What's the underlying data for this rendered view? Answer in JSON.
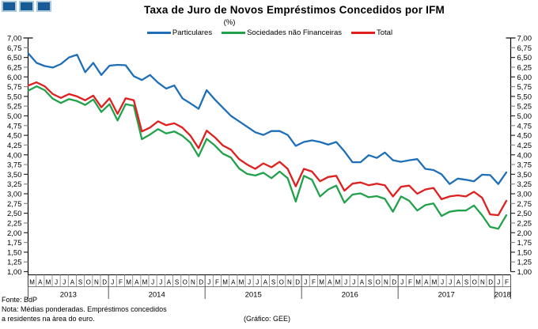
{
  "header": {
    "title": "Taxa de Juro de Novos Empréstimos Concedidos por IFM",
    "subtitle": "(%)"
  },
  "footer": {
    "fonte": "Fonte: BdP",
    "nota_line1": "Nota: Médias ponderadas. Empréstimos concedidos",
    "nota_line2": "a residentes na àrea do euro.",
    "grafico": "(Gráfico: GEE)"
  },
  "logo": {
    "square_color": "#185a94",
    "square_border": "#a9c9dd",
    "count": 3
  },
  "chart_data": {
    "type": "line",
    "title": "Taxa de Juro de Novos Empréstimos Concedidos por IFM",
    "subtitle": "(%)",
    "ylim": [
      1.0,
      7.0
    ],
    "y_step": 0.25,
    "grid": false,
    "legend_position": "top",
    "y_tick_labels": [
      "7,00",
      "6,75",
      "6,50",
      "6,25",
      "6,00",
      "5,75",
      "5,50",
      "5,25",
      "5,00",
      "4,75",
      "4,50",
      "4,25",
      "4,00",
      "3,75",
      "3,50",
      "3,25",
      "3,00",
      "2,75",
      "2,50",
      "2,25",
      "2,00",
      "1,75",
      "1,50",
      "1,25",
      "1,00"
    ],
    "x_axis_years": [
      {
        "label": "2013",
        "months": [
          "M",
          "A",
          "M",
          "J",
          "J",
          "A",
          "S",
          "O",
          "N",
          "D"
        ]
      },
      {
        "label": "2014",
        "months": [
          "J",
          "F",
          "M",
          "A",
          "M",
          "J",
          "J",
          "A",
          "S",
          "O",
          "N",
          "D"
        ]
      },
      {
        "label": "2015",
        "months": [
          "J",
          "F",
          "M",
          "A",
          "M",
          "J",
          "J",
          "A",
          "S",
          "O",
          "N",
          "D"
        ]
      },
      {
        "label": "2016",
        "months": [
          "J",
          "F",
          "M",
          "A",
          "M",
          "J",
          "J",
          "A",
          "S",
          "O",
          "N",
          "D"
        ]
      },
      {
        "label": "2017",
        "months": [
          "J",
          "F",
          "M",
          "A",
          "M",
          "J",
          "J",
          "A",
          "S",
          "O",
          "N",
          "D"
        ]
      },
      {
        "label": "2018",
        "months": [
          "J",
          "F"
        ]
      }
    ],
    "x_range_note": "monthly, Mar 2013 - Feb 2018",
    "series": [
      {
        "name": "Particulares",
        "color": "#1e6fb8",
        "values": [
          6.6,
          6.36,
          6.28,
          6.24,
          6.33,
          6.5,
          6.57,
          6.12,
          6.36,
          6.05,
          6.29,
          6.31,
          6.3,
          6.02,
          5.92,
          6.05,
          5.85,
          5.7,
          5.78,
          5.45,
          5.32,
          5.18,
          5.66,
          5.42,
          5.21,
          5.0,
          4.86,
          4.72,
          4.58,
          4.51,
          4.61,
          4.61,
          4.51,
          4.23,
          4.33,
          4.37,
          4.33,
          4.26,
          4.33,
          4.09,
          3.81,
          3.81,
          3.99,
          3.92,
          4.06,
          3.86,
          3.82,
          3.86,
          3.89,
          3.64,
          3.61,
          3.5,
          3.25,
          3.39,
          3.36,
          3.32,
          3.49,
          3.48,
          3.25,
          3.55
        ]
      },
      {
        "name": "Sociedades não Financeiras",
        "color": "#22a14b",
        "values": [
          5.65,
          5.76,
          5.66,
          5.44,
          5.33,
          5.43,
          5.38,
          5.28,
          5.42,
          5.1,
          5.3,
          4.88,
          5.3,
          5.26,
          4.4,
          4.52,
          4.66,
          4.55,
          4.6,
          4.49,
          4.31,
          3.96,
          4.41,
          4.24,
          4.03,
          3.93,
          3.65,
          3.51,
          3.47,
          3.54,
          3.4,
          3.57,
          3.4,
          2.8,
          3.46,
          3.36,
          2.93,
          3.11,
          3.21,
          2.77,
          2.98,
          3.01,
          2.91,
          2.94,
          2.87,
          2.54,
          2.93,
          2.82,
          2.57,
          2.71,
          2.75,
          2.43,
          2.54,
          2.57,
          2.57,
          2.7,
          2.45,
          2.15,
          2.1,
          2.45
        ]
      },
      {
        "name": "Total",
        "color": "#e01f1f",
        "values": [
          5.78,
          5.86,
          5.76,
          5.56,
          5.46,
          5.56,
          5.5,
          5.4,
          5.52,
          5.22,
          5.45,
          5.05,
          5.45,
          5.4,
          4.6,
          4.7,
          4.86,
          4.76,
          4.81,
          4.7,
          4.49,
          4.17,
          4.62,
          4.45,
          4.24,
          4.13,
          3.89,
          3.75,
          3.64,
          3.78,
          3.68,
          3.82,
          3.64,
          3.19,
          3.64,
          3.57,
          3.32,
          3.43,
          3.46,
          3.08,
          3.26,
          3.29,
          3.22,
          3.26,
          3.22,
          2.93,
          3.18,
          3.21,
          3.0,
          3.11,
          3.15,
          2.86,
          2.93,
          2.96,
          2.93,
          3.05,
          2.9,
          2.47,
          2.45,
          2.82
        ]
      }
    ]
  }
}
